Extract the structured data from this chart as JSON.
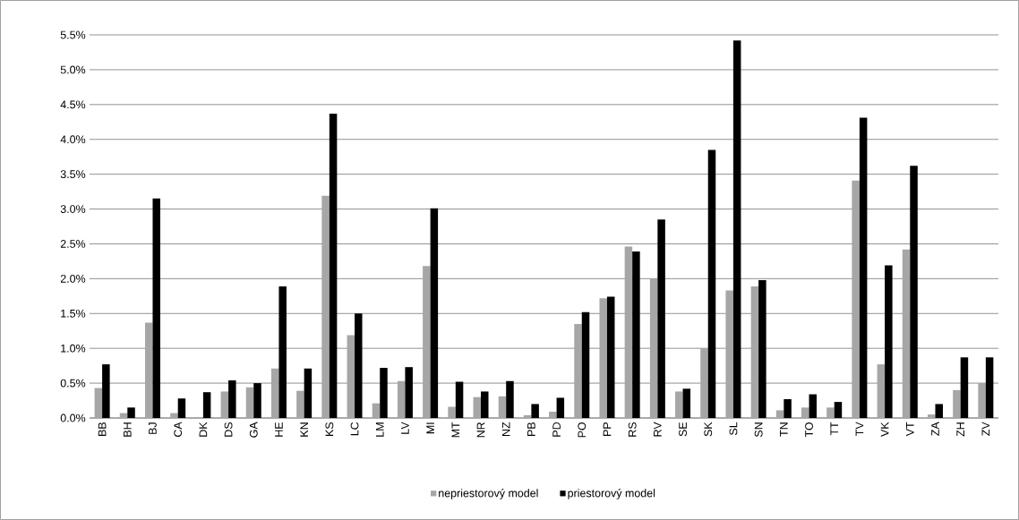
{
  "chart_data": {
    "type": "bar",
    "categories": [
      "BB",
      "BH",
      "BJ",
      "CA",
      "DK",
      "DS",
      "GA",
      "HE",
      "KN",
      "KS",
      "LC",
      "LM",
      "LV",
      "MI",
      "MT",
      "NR",
      "NZ",
      "PB",
      "PD",
      "PO",
      "PP",
      "RS",
      "RV",
      "SE",
      "SK",
      "SL",
      "SN",
      "TN",
      "TO",
      "TT",
      "TV",
      "VK",
      "VT",
      "ZA",
      "ZH",
      "ZV"
    ],
    "series": [
      {
        "name": "nepriestorový model",
        "color": "#a6a6a6",
        "values": [
          0.43,
          0.07,
          1.37,
          0.07,
          0.01,
          0.38,
          0.44,
          0.71,
          0.39,
          3.19,
          1.19,
          0.21,
          0.53,
          2.18,
          0.16,
          0.3,
          0.31,
          0.04,
          0.09,
          1.35,
          1.72,
          2.46,
          2.0,
          0.38,
          1.0,
          1.83,
          1.89,
          0.11,
          0.15,
          0.15,
          3.41,
          0.77,
          2.42,
          0.05,
          0.4,
          0.5
        ]
      },
      {
        "name": "priestorový model",
        "color": "#000000",
        "values": [
          0.77,
          0.15,
          3.15,
          0.28,
          0.37,
          0.54,
          0.5,
          1.89,
          0.71,
          4.37,
          1.5,
          0.72,
          0.73,
          3.01,
          0.52,
          0.38,
          0.53,
          0.2,
          0.29,
          1.52,
          1.74,
          2.39,
          2.85,
          0.42,
          3.85,
          5.42,
          1.98,
          0.27,
          0.34,
          0.23,
          4.31,
          2.19,
          3.62,
          0.2,
          0.87,
          0.87
        ]
      }
    ],
    "ylim": [
      0,
      5.5
    ],
    "yticks": [
      {
        "value": 0,
        "label": "0.0%"
      },
      {
        "value": 0.5,
        "label": "0.5%"
      },
      {
        "value": 1,
        "label": "1.0%"
      },
      {
        "value": 1.5,
        "label": "1.5%"
      },
      {
        "value": 2,
        "label": "2.0%"
      },
      {
        "value": 2.5,
        "label": "2.5%"
      },
      {
        "value": 3,
        "label": "3.0%"
      },
      {
        "value": 3.5,
        "label": "3.5%"
      },
      {
        "value": 4,
        "label": "4.0%"
      },
      {
        "value": 4.5,
        "label": "4.5%"
      },
      {
        "value": 5,
        "label": "5.0%"
      },
      {
        "value": 5.5,
        "label": "5.5%"
      }
    ],
    "grid": "y",
    "legend": "bottom"
  }
}
